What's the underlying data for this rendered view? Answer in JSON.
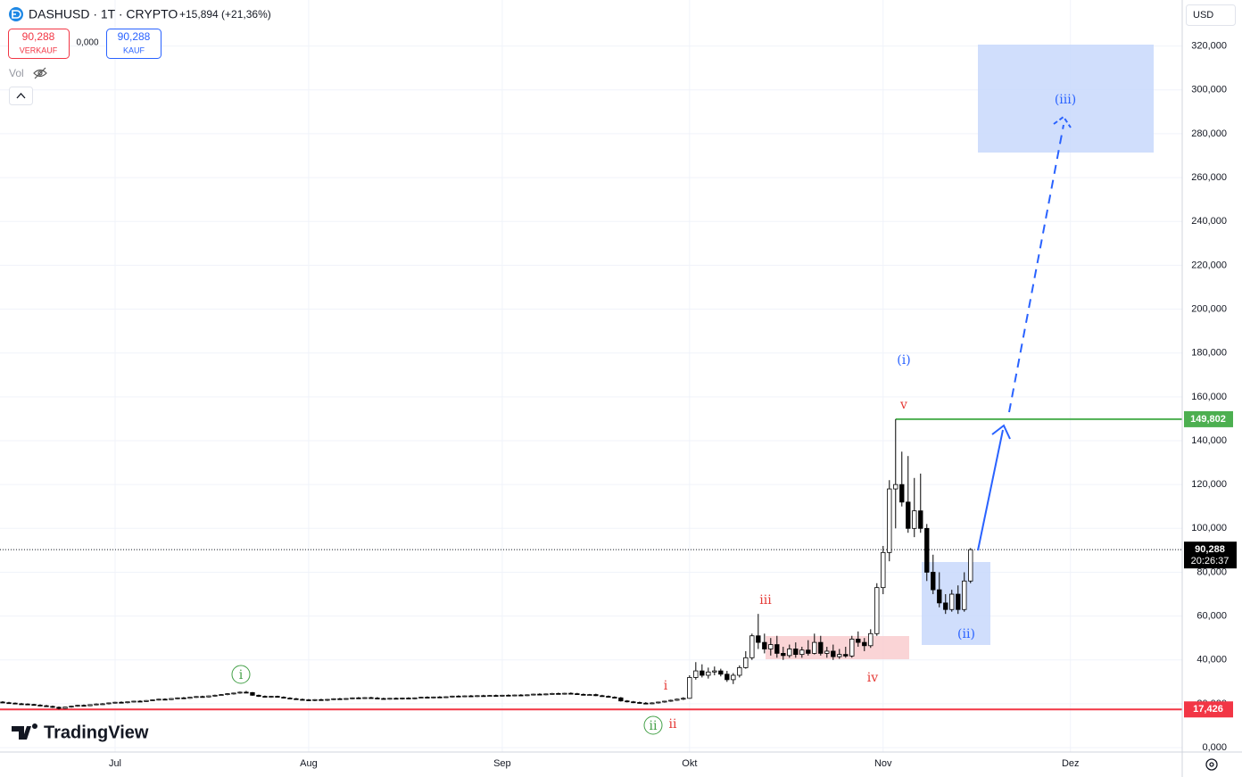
{
  "header": {
    "symbol": "DASHUSD · 1T · CRYPTO",
    "change": "+15,894 (+21,36%)",
    "sell_price": "90,288",
    "sell_label": "VERKAUF",
    "spread": "0,000",
    "buy_price": "90,288",
    "buy_label": "KAUF",
    "volume_label": "Vol",
    "currency": "USD",
    "brand": "TradingView"
  },
  "chart_data": {
    "type": "candlestick",
    "up_color": "#ffffff",
    "down_color": "#000000",
    "border_color": "#000000",
    "grid": true,
    "xlim": [
      -0.43,
      188.9
    ],
    "xticks": [
      {
        "value": 18,
        "label": "Jul"
      },
      {
        "value": 49,
        "label": "Aug"
      },
      {
        "value": 80,
        "label": "Sep"
      },
      {
        "value": 110,
        "label": "Okt"
      },
      {
        "value": 141,
        "label": "Nov"
      },
      {
        "value": 171,
        "label": "Dez"
      }
    ],
    "ylim": [
      -2000,
      341000
    ],
    "yticks": [
      {
        "value": 0,
        "label": "0,000"
      },
      {
        "value": 20000,
        "label": "20,000"
      },
      {
        "value": 40000,
        "label": "40,000"
      },
      {
        "value": 60000,
        "label": "60,000"
      },
      {
        "value": 80000,
        "label": "80,000"
      },
      {
        "value": 100000,
        "label": "100,000"
      },
      {
        "value": 120000,
        "label": "120,000"
      },
      {
        "value": 140000,
        "label": "140,000"
      },
      {
        "value": 160000,
        "label": "160,000"
      },
      {
        "value": 180000,
        "label": "180,000"
      },
      {
        "value": 200000,
        "label": "200,000"
      },
      {
        "value": 220000,
        "label": "220,000"
      },
      {
        "value": 240000,
        "label": "240,000"
      },
      {
        "value": 260000,
        "label": "260,000"
      },
      {
        "value": 280000,
        "label": "280,000"
      },
      {
        "value": 300000,
        "label": "300,000"
      },
      {
        "value": 320000,
        "label": "320,000"
      }
    ],
    "price_lines": [
      {
        "value": 149802,
        "label": "149,802",
        "color": "#4caf50"
      },
      {
        "value": 17426,
        "label": "17,426",
        "color": "#f23645"
      }
    ],
    "last_price": {
      "value": 90288,
      "label": "90,288",
      "countdown": "20:26:37"
    },
    "annotations": {
      "green_i": "i",
      "green_ii": "ii",
      "red_i": "i",
      "red_ii": "ii",
      "red_iii": "iii",
      "red_iv": "iv",
      "red_v": "v",
      "blue_i": "(i)",
      "blue_ii": "(ii)",
      "blue_iii": "(iii)"
    },
    "candles": [
      [
        20800,
        21200,
        20300,
        20500
      ],
      [
        20500,
        20900,
        20100,
        20300
      ],
      [
        20300,
        20600,
        19800,
        20000
      ],
      [
        20000,
        20400,
        19600,
        19900
      ],
      [
        19900,
        20200,
        19400,
        19700
      ],
      [
        19700,
        20000,
        19200,
        19400
      ],
      [
        19400,
        19800,
        18900,
        19100
      ],
      [
        19100,
        19500,
        18600,
        18800
      ],
      [
        18800,
        19200,
        18100,
        18400
      ],
      [
        18400,
        18800,
        17426,
        17900
      ],
      [
        17900,
        18700,
        17600,
        18500
      ],
      [
        18500,
        19100,
        18200,
        18900
      ],
      [
        18900,
        19500,
        18600,
        19300
      ],
      [
        19300,
        19700,
        18900,
        19100
      ],
      [
        19100,
        19800,
        18900,
        19600
      ],
      [
        19600,
        20200,
        19300,
        19900
      ],
      [
        19900,
        20300,
        19500,
        20000
      ],
      [
        20000,
        20600,
        19700,
        20400
      ],
      [
        20400,
        20900,
        20100,
        20700
      ],
      [
        20700,
        21100,
        20300,
        20500
      ],
      [
        20500,
        21000,
        20200,
        20900
      ],
      [
        20900,
        21400,
        20600,
        21200
      ],
      [
        21200,
        21600,
        20800,
        21000
      ],
      [
        21000,
        21700,
        20800,
        21500
      ],
      [
        21500,
        22000,
        21200,
        21800
      ],
      [
        21800,
        22300,
        21500,
        22100
      ],
      [
        22100,
        22500,
        21700,
        21900
      ],
      [
        21900,
        22600,
        21700,
        22400
      ],
      [
        22400,
        22900,
        22100,
        22700
      ],
      [
        22700,
        23100,
        22300,
        22500
      ],
      [
        22500,
        23200,
        22300,
        23000
      ],
      [
        23000,
        23500,
        22700,
        23300
      ],
      [
        23300,
        23700,
        22900,
        23100
      ],
      [
        23100,
        23800,
        22900,
        23600
      ],
      [
        23600,
        24200,
        23300,
        23900
      ],
      [
        23900,
        24400,
        23600,
        24200
      ],
      [
        24200,
        24800,
        23900,
        24600
      ],
      [
        24600,
        25100,
        24200,
        24900
      ],
      [
        24900,
        25600,
        24600,
        25300
      ],
      [
        25300,
        25900,
        24800,
        25100
      ],
      [
        25100,
        25400,
        23600,
        23900
      ],
      [
        23900,
        24200,
        23100,
        23400
      ],
      [
        23400,
        23800,
        22900,
        23200
      ],
      [
        23200,
        23600,
        22700,
        23400
      ],
      [
        23400,
        23700,
        22800,
        23000
      ],
      [
        23000,
        23400,
        22400,
        22600
      ],
      [
        22600,
        23000,
        22100,
        22300
      ],
      [
        22300,
        22700,
        21800,
        22000
      ],
      [
        22000,
        22400,
        21500,
        21800
      ],
      [
        21800,
        22200,
        21300,
        21600
      ],
      [
        21600,
        22100,
        21200,
        21900
      ],
      [
        21900,
        22300,
        21500,
        21700
      ],
      [
        21700,
        22200,
        21300,
        22000
      ],
      [
        22000,
        22500,
        21700,
        22300
      ],
      [
        22300,
        22700,
        21900,
        22100
      ],
      [
        22100,
        22600,
        21800,
        22400
      ],
      [
        22400,
        22900,
        22100,
        22700
      ],
      [
        22700,
        23100,
        22300,
        22500
      ],
      [
        22500,
        23000,
        22200,
        22800
      ],
      [
        22800,
        23200,
        22400,
        22600
      ],
      [
        22600,
        23100,
        22200,
        22400
      ],
      [
        22400,
        22800,
        22000,
        22200
      ],
      [
        22200,
        22700,
        21900,
        22500
      ],
      [
        22500,
        22900,
        22100,
        22300
      ],
      [
        22300,
        22800,
        21900,
        22600
      ],
      [
        22600,
        23000,
        22200,
        22400
      ],
      [
        22400,
        22900,
        22100,
        22700
      ],
      [
        22700,
        23200,
        22400,
        23000
      ],
      [
        23000,
        23400,
        22600,
        22800
      ],
      [
        22800,
        23300,
        22500,
        23100
      ],
      [
        23100,
        23500,
        22700,
        22900
      ],
      [
        22900,
        23400,
        22600,
        23200
      ],
      [
        23200,
        23700,
        22900,
        23500
      ],
      [
        23500,
        23900,
        23100,
        23300
      ],
      [
        23300,
        23800,
        23000,
        23600
      ],
      [
        23600,
        24000,
        23200,
        23400
      ],
      [
        23400,
        23900,
        23100,
        23700
      ],
      [
        23700,
        24100,
        23300,
        23500
      ],
      [
        23500,
        24000,
        23200,
        23800
      ],
      [
        23800,
        24200,
        23400,
        23600
      ],
      [
        23600,
        24100,
        23300,
        23900
      ],
      [
        23900,
        24300,
        23500,
        23700
      ],
      [
        23700,
        24200,
        23400,
        24000
      ],
      [
        24000,
        24400,
        23600,
        23800
      ],
      [
        23800,
        24300,
        23500,
        24100
      ],
      [
        24100,
        24600,
        23800,
        24400
      ],
      [
        24400,
        24800,
        24000,
        24200
      ],
      [
        24200,
        24700,
        23900,
        24500
      ],
      [
        24500,
        25000,
        24200,
        24700
      ],
      [
        24700,
        25100,
        24300,
        24500
      ],
      [
        24500,
        25000,
        24200,
        24800
      ],
      [
        24800,
        25200,
        24400,
        24600
      ],
      [
        24600,
        25000,
        24100,
        24300
      ],
      [
        24300,
        24700,
        23800,
        24000
      ],
      [
        24000,
        24500,
        23700,
        24200
      ],
      [
        24200,
        24600,
        23500,
        23700
      ],
      [
        23700,
        24100,
        23200,
        23400
      ],
      [
        23400,
        23800,
        22800,
        23000
      ],
      [
        23000,
        23400,
        22500,
        22700
      ],
      [
        22700,
        23100,
        21000,
        21300
      ],
      [
        21300,
        21700,
        20600,
        20900
      ],
      [
        20900,
        21300,
        20300,
        20600
      ],
      [
        20600,
        21000,
        20000,
        20300
      ],
      [
        20300,
        20800,
        19900,
        20200
      ],
      [
        20200,
        20700,
        19800,
        20400
      ],
      [
        20400,
        21000,
        20100,
        20800
      ],
      [
        20800,
        21400,
        20500,
        21200
      ],
      [
        21200,
        21900,
        20900,
        21600
      ],
      [
        21600,
        22400,
        21300,
        22100
      ],
      [
        22100,
        23000,
        21700,
        22500
      ],
      [
        22500,
        33000,
        22300,
        32000
      ],
      [
        32000,
        39000,
        31000,
        35000
      ],
      [
        35000,
        38000,
        32000,
        33000
      ],
      [
        33000,
        36500,
        31500,
        34500
      ],
      [
        34500,
        37000,
        33000,
        35000
      ],
      [
        35000,
        36000,
        32500,
        33500
      ],
      [
        33500,
        35000,
        30000,
        31000
      ],
      [
        31000,
        34000,
        29000,
        33000
      ],
      [
        33000,
        37500,
        32000,
        36500
      ],
      [
        36500,
        44000,
        36000,
        41000
      ],
      [
        41000,
        52000,
        40000,
        51000
      ],
      [
        51000,
        61000,
        45000,
        48000
      ],
      [
        48000,
        52000,
        43000,
        45000
      ],
      [
        45000,
        50000,
        42000,
        47000
      ],
      [
        47000,
        51000,
        41000,
        43000
      ],
      [
        43000,
        46000,
        40000,
        42000
      ],
      [
        42000,
        47000,
        41000,
        45000
      ],
      [
        45000,
        48000,
        41000,
        42500
      ],
      [
        42500,
        46000,
        41000,
        44500
      ],
      [
        44500,
        49000,
        42000,
        43000
      ],
      [
        43000,
        52000,
        42500,
        48000
      ],
      [
        48000,
        51000,
        42000,
        43000
      ],
      [
        43000,
        46000,
        41000,
        44000
      ],
      [
        44000,
        47000,
        40000,
        41500
      ],
      [
        41500,
        45000,
        40500,
        42500
      ],
      [
        42500,
        46000,
        41000,
        41800
      ],
      [
        41800,
        51000,
        41000,
        49500
      ],
      [
        49500,
        53000,
        46000,
        48000
      ],
      [
        48000,
        50000,
        44000,
        46500
      ],
      [
        46500,
        54000,
        45500,
        52000
      ],
      [
        52000,
        75000,
        51000,
        73000
      ],
      [
        73000,
        92000,
        70000,
        89000
      ],
      [
        89000,
        122000,
        85000,
        118000
      ],
      [
        118000,
        149802,
        100000,
        120000
      ],
      [
        120000,
        135000,
        110000,
        112000
      ],
      [
        112000,
        133000,
        98000,
        100000
      ],
      [
        100000,
        123000,
        96000,
        108000
      ],
      [
        108000,
        125000,
        98000,
        100000
      ],
      [
        100000,
        102000,
        76000,
        80000
      ],
      [
        80000,
        88000,
        70000,
        72000
      ],
      [
        72000,
        80000,
        64000,
        66000
      ],
      [
        66000,
        70000,
        61000,
        63000
      ],
      [
        63000,
        72000,
        62000,
        70000
      ],
      [
        70000,
        74000,
        61000,
        63000
      ],
      [
        63000,
        80000,
        62000,
        76000
      ],
      [
        76000,
        91000,
        75000,
        90288
      ]
    ]
  }
}
